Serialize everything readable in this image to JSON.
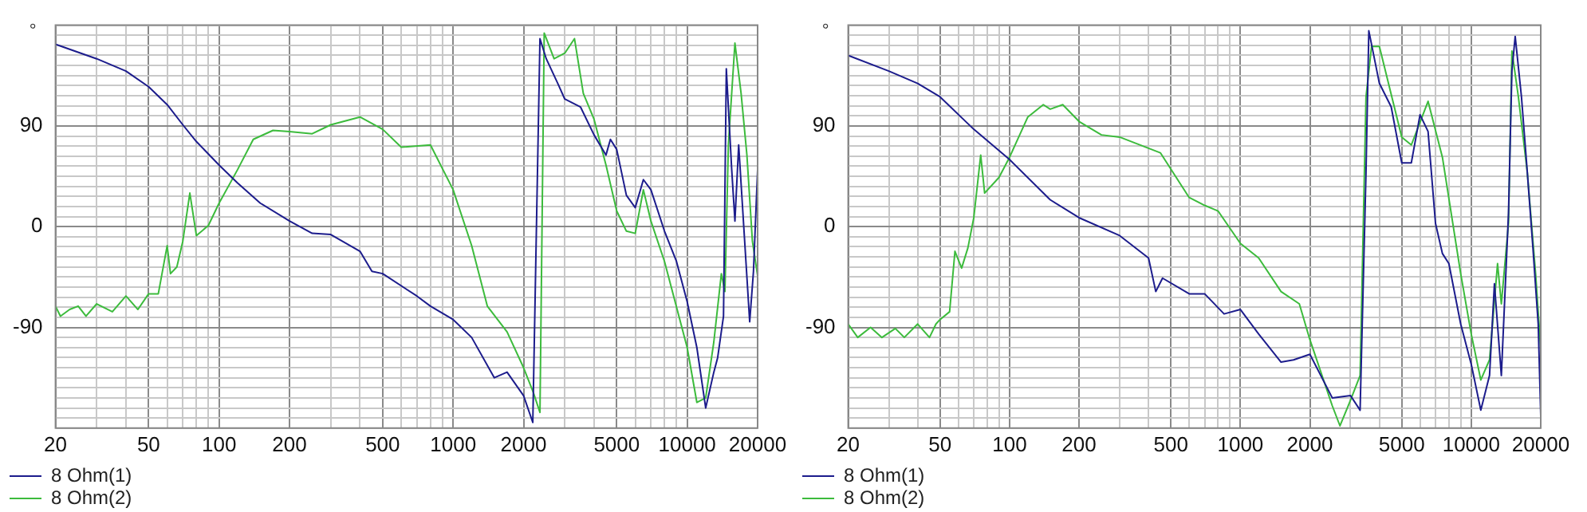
{
  "chart_data": [
    {
      "type": "line",
      "ylabel": "°",
      "log": "x",
      "grid": true,
      "legend": "bottom left",
      "marker": "none",
      "line_style": "solid",
      "xlim": [
        20,
        20000
      ],
      "ylim": [
        -180,
        180
      ],
      "xticks": [
        20,
        {
          "value": 30,
          "label": null
        },
        {
          "value": 40,
          "label": null
        },
        50,
        {
          "value": 60,
          "label": null
        },
        {
          "value": 70,
          "label": null
        },
        {
          "value": 80,
          "label": null
        },
        {
          "value": 90,
          "label": null
        },
        100,
        200,
        {
          "value": 300,
          "label": null
        },
        {
          "value": 400,
          "label": null
        },
        500,
        {
          "value": 600,
          "label": null
        },
        {
          "value": 700,
          "label": null
        },
        {
          "value": 800,
          "label": null
        },
        {
          "value": 900,
          "label": null
        },
        1000,
        2000,
        {
          "value": 3000,
          "label": null
        },
        {
          "value": 4000,
          "label": null
        },
        5000,
        {
          "value": 6000,
          "label": null
        },
        {
          "value": 7000,
          "label": null
        },
        {
          "value": 8000,
          "label": null
        },
        {
          "value": 9000,
          "label": null
        },
        10000,
        20000
      ],
      "yticks": [
        {
          "value": -180,
          "label": null
        },
        {
          "value": -171,
          "label": null
        },
        {
          "value": -162,
          "label": null
        },
        {
          "value": -153,
          "label": null
        },
        {
          "value": -144,
          "label": null
        },
        {
          "value": -135,
          "label": null
        },
        {
          "value": -126,
          "label": null
        },
        {
          "value": -117,
          "label": null
        },
        {
          "value": -108,
          "label": null
        },
        {
          "value": -99,
          "label": null
        },
        -90,
        {
          "value": -81,
          "label": null
        },
        {
          "value": -72,
          "label": null
        },
        {
          "value": -63,
          "label": null
        },
        {
          "value": -54,
          "label": null
        },
        {
          "value": -45,
          "label": null
        },
        {
          "value": -36,
          "label": null
        },
        {
          "value": -27,
          "label": null
        },
        {
          "value": -18,
          "label": null
        },
        {
          "value": -9,
          "label": null
        },
        0,
        {
          "value": 9,
          "label": null
        },
        {
          "value": 18,
          "label": null
        },
        {
          "value": 27,
          "label": null
        },
        {
          "value": 36,
          "label": null
        },
        {
          "value": 45,
          "label": null
        },
        {
          "value": 54,
          "label": null
        },
        {
          "value": 63,
          "label": null
        },
        {
          "value": 72,
          "label": null
        },
        {
          "value": 81,
          "label": null
        },
        90,
        {
          "value": 99,
          "label": null
        },
        {
          "value": 108,
          "label": null
        },
        {
          "value": 117,
          "label": null
        },
        {
          "value": 126,
          "label": null
        },
        {
          "value": 135,
          "label": null
        },
        {
          "value": 144,
          "label": null
        },
        {
          "value": 153,
          "label": null
        },
        {
          "value": 162,
          "label": null
        },
        {
          "value": 171,
          "label": null
        },
        {
          "value": 180,
          "label": null
        }
      ],
      "series": [
        {
          "name": "8 Ohm(1)",
          "color": "#1c1c8c",
          "x": [
            20,
            30,
            40,
            50,
            60,
            70,
            80,
            100,
            120,
            150,
            200,
            250,
            300,
            400,
            450,
            500,
            700,
            800,
            1000,
            1200,
            1500,
            1700,
            2000,
            2190,
            2350,
            2500,
            2800,
            3000,
            3500,
            4000,
            4500,
            4700,
            5000,
            5500,
            6000,
            6500,
            7000,
            8000,
            9000,
            10000,
            11000,
            12000,
            13000,
            13500,
            14300,
            14700,
            15500,
            16000,
            16600,
            17500,
            18500,
            19200,
            20000
          ],
          "values": [
            163,
            150,
            139,
            125,
            109,
            91,
            76,
            55,
            39,
            21,
            5,
            -6,
            -7,
            -22,
            -40,
            -42,
            -62,
            -71,
            -83,
            -99,
            -135,
            -130,
            -151,
            -175,
            168,
            150,
            128,
            114,
            107,
            82,
            64,
            78,
            69,
            28,
            17,
            42,
            33,
            -4,
            -31,
            -67,
            -108,
            -162,
            -130,
            -117,
            -80,
            141,
            51,
            5,
            73,
            -4,
            -85,
            -40,
            51
          ]
        },
        {
          "name": "8 Ohm(2)",
          "color": "#3cbb3c",
          "x": [
            20,
            21,
            23,
            25,
            27,
            30,
            35,
            40,
            45,
            50,
            55,
            60,
            62,
            66,
            70,
            75,
            80,
            90,
            100,
            120,
            140,
            170,
            200,
            250,
            300,
            400,
            500,
            600,
            800,
            1000,
            1200,
            1400,
            1700,
            2000,
            2200,
            2350,
            2450,
            2700,
            3000,
            3300,
            3600,
            4000,
            4500,
            5000,
            5500,
            6000,
            6500,
            7000,
            8000,
            10000,
            11000,
            12000,
            13000,
            14000,
            14500,
            15000,
            16000,
            17000,
            18000,
            19000,
            20000
          ],
          "values": [
            -71,
            -80,
            -74,
            -71,
            -80,
            -69,
            -76,
            -62,
            -74,
            -60,
            -60,
            -17,
            -42,
            -36,
            -13,
            30,
            -8,
            1,
            21,
            51,
            78,
            86,
            85,
            83,
            91,
            98,
            87,
            71,
            73,
            33,
            -17,
            -71,
            -94,
            -126,
            -148,
            -166,
            173,
            150,
            155,
            168,
            119,
            96,
            55,
            14,
            -4,
            -6,
            33,
            5,
            -31,
            -108,
            -157,
            -153,
            -103,
            -42,
            -58,
            73,
            164,
            119,
            64,
            -13,
            -44
          ]
        }
      ]
    },
    {
      "type": "line",
      "ylabel": "°",
      "log": "x",
      "grid": true,
      "legend": "bottom left",
      "marker": "none",
      "line_style": "solid",
      "xlim": [
        20,
        20000
      ],
      "ylim": [
        -180,
        180
      ],
      "xticks": [
        20,
        {
          "value": 30,
          "label": null
        },
        {
          "value": 40,
          "label": null
        },
        50,
        {
          "value": 60,
          "label": null
        },
        {
          "value": 70,
          "label": null
        },
        {
          "value": 80,
          "label": null
        },
        {
          "value": 90,
          "label": null
        },
        100,
        200,
        {
          "value": 300,
          "label": null
        },
        {
          "value": 400,
          "label": null
        },
        500,
        {
          "value": 600,
          "label": null
        },
        {
          "value": 700,
          "label": null
        },
        {
          "value": 800,
          "label": null
        },
        {
          "value": 900,
          "label": null
        },
        1000,
        2000,
        {
          "value": 3000,
          "label": null
        },
        {
          "value": 4000,
          "label": null
        },
        5000,
        {
          "value": 6000,
          "label": null
        },
        {
          "value": 7000,
          "label": null
        },
        {
          "value": 8000,
          "label": null
        },
        {
          "value": 9000,
          "label": null
        },
        10000,
        20000
      ],
      "yticks": [
        {
          "value": -180,
          "label": null
        },
        {
          "value": -171,
          "label": null
        },
        {
          "value": -162,
          "label": null
        },
        {
          "value": -153,
          "label": null
        },
        {
          "value": -144,
          "label": null
        },
        {
          "value": -135,
          "label": null
        },
        {
          "value": -126,
          "label": null
        },
        {
          "value": -117,
          "label": null
        },
        {
          "value": -108,
          "label": null
        },
        {
          "value": -99,
          "label": null
        },
        -90,
        {
          "value": -81,
          "label": null
        },
        {
          "value": -72,
          "label": null
        },
        {
          "value": -63,
          "label": null
        },
        {
          "value": -54,
          "label": null
        },
        {
          "value": -45,
          "label": null
        },
        {
          "value": -36,
          "label": null
        },
        {
          "value": -27,
          "label": null
        },
        {
          "value": -18,
          "label": null
        },
        {
          "value": -9,
          "label": null
        },
        0,
        {
          "value": 9,
          "label": null
        },
        {
          "value": 18,
          "label": null
        },
        {
          "value": 27,
          "label": null
        },
        {
          "value": 36,
          "label": null
        },
        {
          "value": 45,
          "label": null
        },
        {
          "value": 54,
          "label": null
        },
        {
          "value": 63,
          "label": null
        },
        {
          "value": 72,
          "label": null
        },
        {
          "value": 81,
          "label": null
        },
        90,
        {
          "value": 99,
          "label": null
        },
        {
          "value": 108,
          "label": null
        },
        {
          "value": 117,
          "label": null
        },
        {
          "value": 126,
          "label": null
        },
        {
          "value": 135,
          "label": null
        },
        {
          "value": 144,
          "label": null
        },
        {
          "value": 153,
          "label": null
        },
        {
          "value": 162,
          "label": null
        },
        {
          "value": 171,
          "label": null
        },
        {
          "value": 180,
          "label": null
        }
      ],
      "series": [
        {
          "name": "8 Ohm(1)",
          "color": "#1c1c8c",
          "x": [
            20,
            30,
            40,
            50,
            70,
            100,
            150,
            200,
            300,
            400,
            430,
            460,
            600,
            700,
            850,
            1000,
            1200,
            1500,
            1700,
            2000,
            2500,
            3000,
            3300,
            3500,
            3600,
            4000,
            4500,
            5000,
            5500,
            6000,
            6500,
            7000,
            7500,
            8000,
            9000,
            10000,
            11000,
            12000,
            12600,
            13500,
            14500,
            15000,
            15500,
            16500,
            17500,
            18500,
            19500,
            20000
          ],
          "values": [
            153,
            139,
            128,
            116,
            87,
            60,
            24,
            8,
            -8,
            -28,
            -58,
            -46,
            -60,
            -60,
            -78,
            -74,
            -96,
            -121,
            -119,
            -114,
            -153,
            -151,
            -164,
            48,
            175,
            128,
            107,
            57,
            57,
            100,
            85,
            3,
            -24,
            -33,
            -87,
            -123,
            -164,
            -133,
            -51,
            -133,
            12,
            139,
            170,
            116,
            48,
            -19,
            -87,
            -169
          ]
        },
        {
          "name": "8 Ohm(2)",
          "color": "#3cbb3c",
          "x": [
            20,
            22,
            25,
            28,
            32,
            35,
            40,
            45,
            48,
            50,
            55,
            58,
            62,
            66,
            70,
            75,
            78,
            90,
            100,
            120,
            140,
            150,
            170,
            200,
            250,
            300,
            450,
            600,
            700,
            800,
            1000,
            1200,
            1500,
            1800,
            2000,
            2500,
            2700,
            3000,
            3300,
            3500,
            3700,
            4000,
            5000,
            5500,
            6500,
            7500,
            9000,
            10000,
            11000,
            12000,
            13000,
            13500,
            14500,
            15000,
            16000,
            17500,
            19000,
            20000
          ],
          "values": [
            -87,
            -99,
            -90,
            -99,
            -91,
            -99,
            -87,
            -99,
            -87,
            -83,
            -76,
            -22,
            -37,
            -19,
            8,
            64,
            30,
            44,
            62,
            98,
            109,
            105,
            109,
            94,
            82,
            80,
            66,
            26,
            19,
            14,
            -15,
            -28,
            -58,
            -69,
            -101,
            -160,
            -178,
            -155,
            -133,
            116,
            161,
            161,
            80,
            73,
            112,
            62,
            -42,
            -96,
            -137,
            -119,
            -33,
            -69,
            3,
            157,
            116,
            48,
            -42,
            -110
          ]
        }
      ]
    }
  ]
}
